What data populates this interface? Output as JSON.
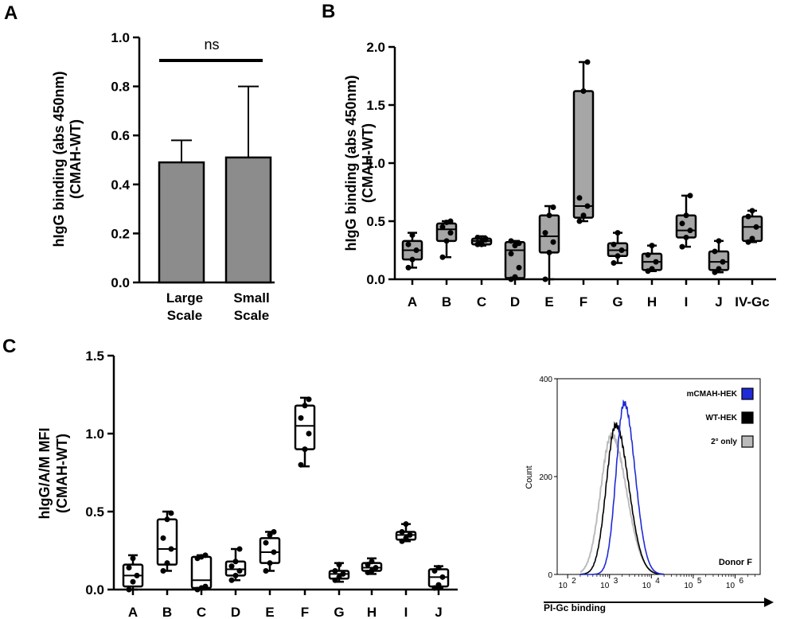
{
  "panels": {
    "A": {
      "letter": "A"
    },
    "B": {
      "letter": "B"
    },
    "C": {
      "letter": "C"
    }
  },
  "chart_data": [
    {
      "id": "A",
      "type": "bar",
      "ylabel_line1": "hIgG binding (abs 450nm)",
      "ylabel_line2": "(CMAH-WT)",
      "ylim": [
        0,
        1.0
      ],
      "yticks": [
        "0.0",
        "0.2",
        "0.4",
        "0.6",
        "0.8",
        "1.0"
      ],
      "categories": [
        [
          "Large",
          "Scale"
        ],
        [
          "Small",
          "Scale"
        ]
      ],
      "values": [
        0.49,
        0.51
      ],
      "errors": [
        0.58,
        0.8
      ],
      "bar_color": "#8c8c8c",
      "annotation": "ns"
    },
    {
      "id": "B",
      "type": "box",
      "ylabel_line1": "hIgG binding (abs 450nm)",
      "ylabel_line2": "(CMAH-WT)",
      "ylim": [
        0,
        2.0
      ],
      "yticks": [
        "0.0",
        "0.5",
        "1.0",
        "1.5",
        "2.0"
      ],
      "categories": [
        "A",
        "B",
        "C",
        "D",
        "E",
        "F",
        "G",
        "H",
        "I",
        "J",
        "IV-Gc"
      ],
      "box_color": "#a6a6a6",
      "boxes": [
        {
          "min": 0.1,
          "q1": 0.17,
          "median": 0.25,
          "q3": 0.33,
          "max": 0.4,
          "points": [
            0.1,
            0.17,
            0.25,
            0.3,
            0.38
          ]
        },
        {
          "min": 0.19,
          "q1": 0.33,
          "median": 0.43,
          "q3": 0.48,
          "max": 0.5,
          "points": [
            0.19,
            0.33,
            0.4,
            0.45,
            0.49,
            0.5
          ]
        },
        {
          "min": 0.29,
          "q1": 0.3,
          "median": 0.33,
          "q3": 0.35,
          "max": 0.37,
          "points": [
            0.3,
            0.32,
            0.34,
            0.36,
            0.3,
            0.35
          ]
        },
        {
          "min": 0.0,
          "q1": 0.01,
          "median": 0.25,
          "q3": 0.32,
          "max": 0.33,
          "points": [
            0.0,
            0.02,
            0.1,
            0.22,
            0.29,
            0.31,
            0.33
          ]
        },
        {
          "min": 0.0,
          "q1": 0.23,
          "median": 0.37,
          "q3": 0.55,
          "max": 0.63,
          "points": [
            0.0,
            0.23,
            0.32,
            0.4,
            0.55,
            0.62
          ]
        },
        {
          "min": 0.5,
          "q1": 0.53,
          "median": 0.63,
          "q3": 1.62,
          "max": 1.87,
          "points": [
            0.5,
            0.55,
            0.63,
            0.7,
            1.62,
            1.87
          ]
        },
        {
          "min": 0.14,
          "q1": 0.2,
          "median": 0.25,
          "q3": 0.31,
          "max": 0.4,
          "points": [
            0.14,
            0.2,
            0.25,
            0.3,
            0.4
          ]
        },
        {
          "min": 0.07,
          "q1": 0.08,
          "median": 0.15,
          "q3": 0.22,
          "max": 0.29,
          "points": [
            0.07,
            0.09,
            0.15,
            0.21,
            0.29
          ]
        },
        {
          "min": 0.28,
          "q1": 0.36,
          "median": 0.42,
          "q3": 0.55,
          "max": 0.72,
          "points": [
            0.28,
            0.36,
            0.42,
            0.48,
            0.55,
            0.72
          ]
        },
        {
          "min": 0.06,
          "q1": 0.08,
          "median": 0.15,
          "q3": 0.24,
          "max": 0.33,
          "points": [
            0.06,
            0.09,
            0.15,
            0.24,
            0.33
          ]
        },
        {
          "min": 0.32,
          "q1": 0.33,
          "median": 0.45,
          "q3": 0.54,
          "max": 0.59,
          "points": [
            0.32,
            0.35,
            0.45,
            0.54,
            0.59
          ]
        }
      ]
    },
    {
      "id": "C",
      "type": "box",
      "ylabel_line1": "hIgG/A/M MFI",
      "ylabel_line2": "(CMAH-WT)",
      "ylim": [
        0,
        1.5
      ],
      "yticks": [
        "0.0",
        "0.5",
        "1.0",
        "1.5"
      ],
      "categories": [
        "A",
        "B",
        "C",
        "D",
        "E",
        "F",
        "G",
        "H",
        "I",
        "J"
      ],
      "box_color": "#ffffff",
      "boxes": [
        {
          "min": 0.0,
          "q1": 0.02,
          "median": 0.09,
          "q3": 0.16,
          "max": 0.22,
          "points": [
            0.0,
            0.05,
            0.09,
            0.14,
            0.2
          ]
        },
        {
          "min": 0.12,
          "q1": 0.16,
          "median": 0.26,
          "q3": 0.45,
          "max": 0.5,
          "points": [
            0.12,
            0.17,
            0.26,
            0.33,
            0.45,
            0.49
          ]
        },
        {
          "min": 0.0,
          "q1": 0.01,
          "median": 0.06,
          "q3": 0.21,
          "max": 0.22,
          "points": [
            0.0,
            0.01,
            0.02,
            0.2,
            0.21,
            0.22
          ]
        },
        {
          "min": 0.06,
          "q1": 0.09,
          "median": 0.13,
          "q3": 0.18,
          "max": 0.26,
          "points": [
            0.06,
            0.09,
            0.12,
            0.15,
            0.18,
            0.26
          ]
        },
        {
          "min": 0.12,
          "q1": 0.17,
          "median": 0.24,
          "q3": 0.33,
          "max": 0.37,
          "points": [
            0.12,
            0.17,
            0.24,
            0.3,
            0.35,
            0.37
          ]
        },
        {
          "min": 0.79,
          "q1": 0.9,
          "median": 1.05,
          "q3": 1.18,
          "max": 1.23,
          "points": [
            0.8,
            0.9,
            1.0,
            1.1,
            1.18,
            1.22
          ]
        },
        {
          "min": 0.05,
          "q1": 0.07,
          "median": 0.1,
          "q3": 0.12,
          "max": 0.17,
          "points": [
            0.06,
            0.08,
            0.1,
            0.12,
            0.16
          ]
        },
        {
          "min": 0.1,
          "q1": 0.12,
          "median": 0.14,
          "q3": 0.17,
          "max": 0.2,
          "points": [
            0.11,
            0.12,
            0.14,
            0.16,
            0.18
          ]
        },
        {
          "min": 0.31,
          "q1": 0.32,
          "median": 0.35,
          "q3": 0.37,
          "max": 0.42,
          "points": [
            0.31,
            0.33,
            0.35,
            0.37,
            0.42
          ]
        },
        {
          "min": 0.01,
          "q1": 0.02,
          "median": 0.08,
          "q3": 0.13,
          "max": 0.15,
          "points": [
            0.01,
            0.03,
            0.08,
            0.12,
            0.14
          ]
        }
      ]
    },
    {
      "id": "C-histogram",
      "type": "line",
      "ylabel": "Count",
      "xlabel": "PI-Gc binding",
      "ylim": [
        0,
        400
      ],
      "yticks": [
        "0",
        "200",
        "400"
      ],
      "xticks": [
        {
          "base": "10",
          "exp": "2"
        },
        {
          "base": "10",
          "exp": "3"
        },
        {
          "base": "10",
          "exp": "4"
        },
        {
          "base": "10",
          "exp": "5"
        },
        {
          "base": "10",
          "exp": "6"
        }
      ],
      "annotation": "Donor F",
      "series": [
        {
          "name": "mCMAH-HEK",
          "color": "#1f2bd6",
          "peak_log": 3.35,
          "peak": 350,
          "width": 0.22
        },
        {
          "name": "WT-HEK",
          "color": "#000000",
          "peak_log": 3.15,
          "peak": 305,
          "width": 0.26
        },
        {
          "name": "2° only",
          "color": "#bbbbbb",
          "peak_log": 3.05,
          "peak": 285,
          "width": 0.3
        }
      ]
    }
  ]
}
